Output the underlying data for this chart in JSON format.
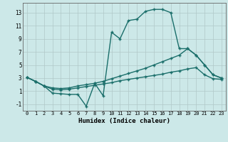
{
  "title": "",
  "xlabel": "Humidex (Indice chaleur)",
  "ylabel": "",
  "bg_color": "#cce8e8",
  "grid_color": "#b0c8c8",
  "line_color": "#1a6e6a",
  "xlim": [
    -0.5,
    23.5
  ],
  "ylim": [
    -2.0,
    14.5
  ],
  "yticks": [
    -1,
    1,
    3,
    5,
    7,
    9,
    11,
    13
  ],
  "xticks": [
    0,
    1,
    2,
    3,
    4,
    5,
    6,
    7,
    8,
    9,
    10,
    11,
    12,
    13,
    14,
    15,
    16,
    17,
    18,
    19,
    20,
    21,
    22,
    23
  ],
  "line1_x": [
    0,
    1,
    2,
    3,
    4,
    5,
    6,
    7,
    8,
    9,
    10,
    11,
    12,
    13,
    14,
    15,
    16,
    17,
    18,
    19,
    20,
    21,
    22,
    23
  ],
  "line1_y": [
    3.1,
    2.5,
    1.8,
    0.7,
    0.6,
    0.5,
    0.5,
    -1.3,
    2.2,
    0.3,
    10.0,
    9.0,
    11.8,
    12.0,
    13.2,
    13.5,
    13.5,
    13.0,
    7.5,
    7.5,
    6.5,
    5.0,
    3.5,
    3.0
  ],
  "line2_x": [
    0,
    1,
    2,
    3,
    4,
    5,
    6,
    7,
    8,
    9,
    10,
    11,
    12,
    13,
    14,
    15,
    16,
    17,
    18,
    19,
    20,
    21,
    22,
    23
  ],
  "line2_y": [
    3.1,
    2.5,
    1.8,
    1.5,
    1.4,
    1.5,
    1.8,
    2.0,
    2.2,
    2.5,
    2.9,
    3.3,
    3.7,
    4.1,
    4.5,
    5.0,
    5.5,
    6.0,
    6.5,
    7.5,
    6.5,
    5.0,
    3.5,
    3.0
  ],
  "line3_x": [
    0,
    1,
    2,
    3,
    4,
    5,
    6,
    7,
    8,
    9,
    10,
    11,
    12,
    13,
    14,
    15,
    16,
    17,
    18,
    19,
    20,
    21,
    22,
    23
  ],
  "line3_y": [
    3.1,
    2.5,
    1.8,
    1.3,
    1.2,
    1.3,
    1.5,
    1.7,
    1.9,
    2.1,
    2.3,
    2.6,
    2.8,
    3.0,
    3.2,
    3.4,
    3.6,
    3.9,
    4.1,
    4.4,
    4.6,
    3.5,
    2.9,
    2.8
  ]
}
